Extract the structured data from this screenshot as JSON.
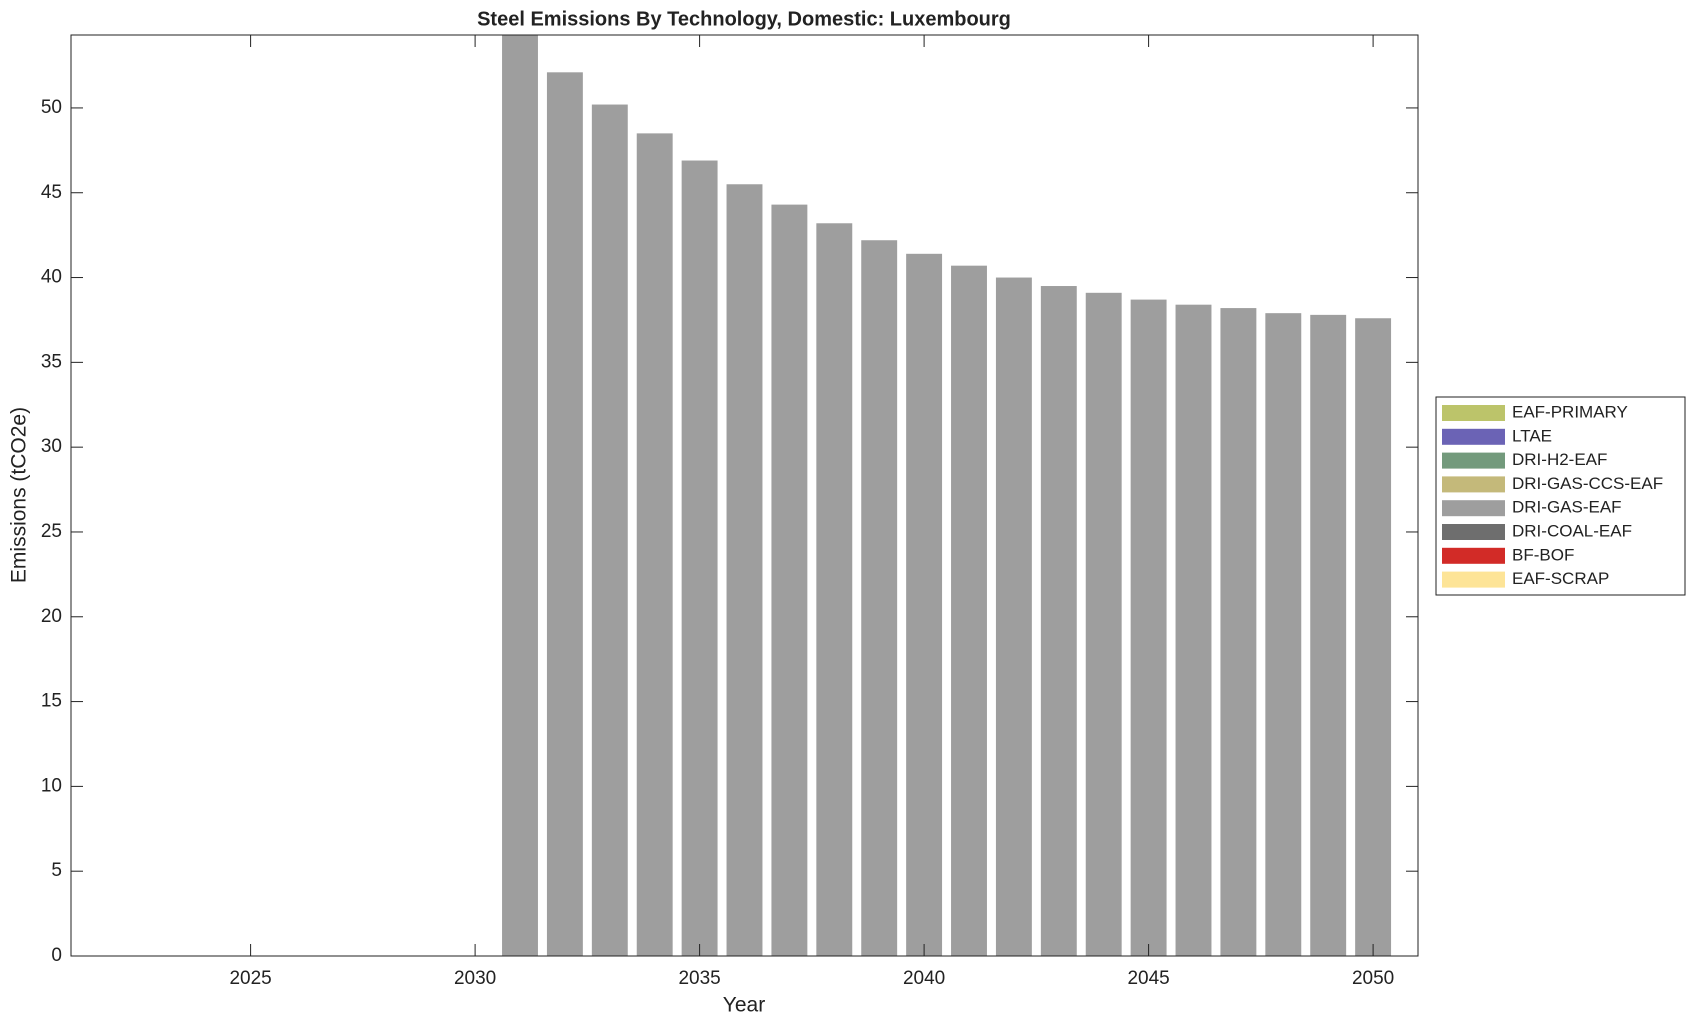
{
  "chart_data": {
    "type": "stacked_bar",
    "title": "Steel Emissions By Technology, Domestic: Luxembourg",
    "xlabel": "Year",
    "ylabel": "Emissions (tCO2e)",
    "x": [
      2031,
      2032,
      2033,
      2034,
      2035,
      2036,
      2037,
      2038,
      2039,
      2040,
      2041,
      2042,
      2043,
      2044,
      2045,
      2046,
      2047,
      2048,
      2049,
      2050
    ],
    "series": [
      {
        "name": "EAF-PRIMARY",
        "color": "#bcc46a",
        "values": [
          0,
          0,
          0,
          0,
          0,
          0,
          0,
          0,
          0,
          0,
          0,
          0,
          0,
          0,
          0,
          0,
          0,
          0,
          0,
          0
        ]
      },
      {
        "name": "LTAE",
        "color": "#6b63b5",
        "values": [
          0,
          0,
          0,
          0,
          0,
          0,
          0,
          0,
          0,
          0,
          0,
          0,
          0,
          0,
          0,
          0,
          0,
          0,
          0,
          0
        ]
      },
      {
        "name": "DRI-H2-EAF",
        "color": "#739a7c",
        "values": [
          0,
          0,
          0,
          0,
          0,
          0,
          0,
          0,
          0,
          0,
          0,
          0,
          0,
          0,
          0,
          0,
          0,
          0,
          0,
          0
        ]
      },
      {
        "name": "DRI-GAS-CCS-EAF",
        "color": "#c4b97a",
        "values": [
          0,
          0,
          0,
          0,
          0,
          0,
          0,
          0,
          0,
          0,
          0,
          0,
          0,
          0,
          0,
          0,
          0,
          0,
          0,
          0
        ]
      },
      {
        "name": "DRI-GAS-EAF",
        "color": "#9e9e9e",
        "values": [
          54.5,
          52.1,
          50.2,
          48.5,
          46.9,
          45.5,
          44.3,
          43.2,
          42.2,
          41.4,
          40.7,
          40.0,
          39.5,
          39.1,
          38.7,
          38.4,
          38.2,
          37.9,
          37.8,
          37.6
        ]
      },
      {
        "name": "DRI-COAL-EAF",
        "color": "#6e6e6e",
        "values": [
          0,
          0,
          0,
          0,
          0,
          0,
          0,
          0,
          0,
          0,
          0,
          0,
          0,
          0,
          0,
          0,
          0,
          0,
          0,
          0
        ]
      },
      {
        "name": "BF-BOF",
        "color": "#d22b27",
        "values": [
          0,
          0,
          0,
          0,
          0,
          0,
          0,
          0,
          0,
          0,
          0,
          0,
          0,
          0,
          0,
          0,
          0,
          0,
          0,
          0
        ]
      },
      {
        "name": "EAF-SCRAP",
        "color": "#fde497",
        "values": [
          0,
          0,
          0,
          0,
          0,
          0,
          0,
          0,
          0,
          0,
          0,
          0,
          0,
          0,
          0,
          0,
          0,
          0,
          0,
          0
        ]
      }
    ],
    "xlim": [
      2021,
      2051
    ],
    "xticks": [
      2025,
      2030,
      2035,
      2040,
      2045,
      2050
    ],
    "ylim": [
      0,
      54.3
    ],
    "yticks": [
      0,
      5,
      10,
      15,
      20,
      25,
      30,
      35,
      40,
      45,
      50
    ],
    "legend": "right"
  }
}
